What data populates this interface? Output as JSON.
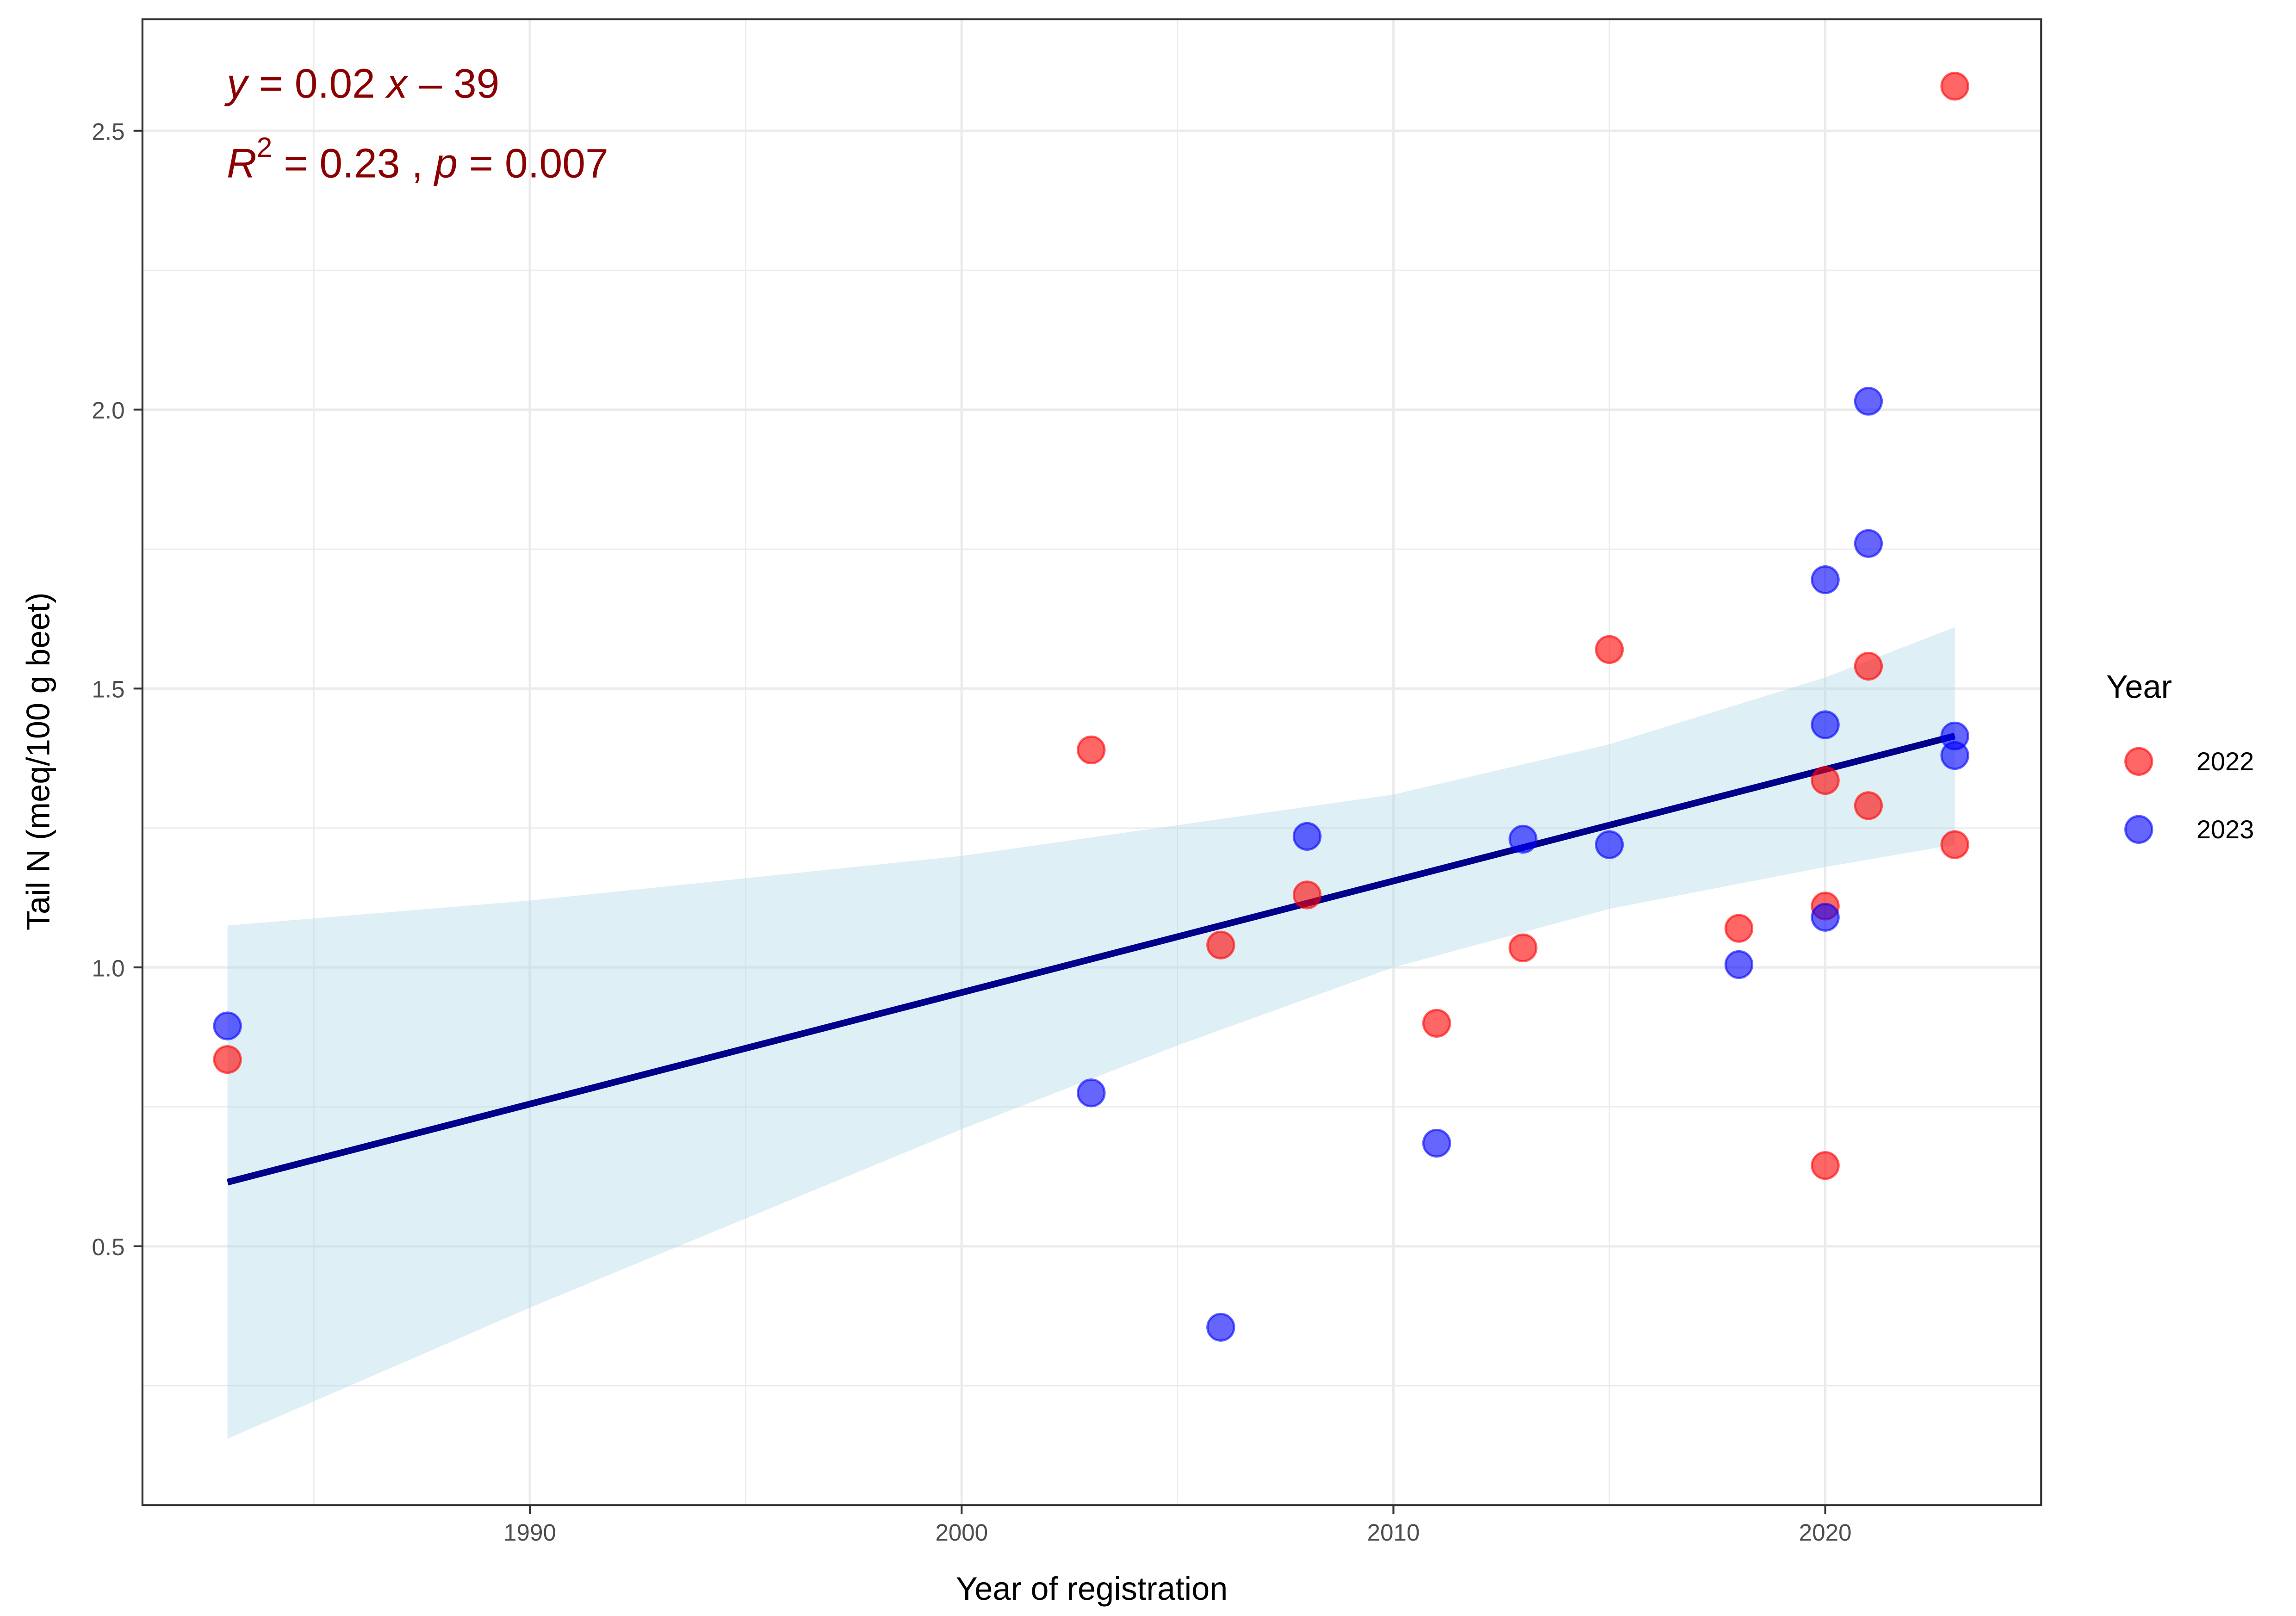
{
  "chart_data": {
    "type": "scatter",
    "title": "",
    "xlabel": "Year of registration",
    "ylabel": "Tail N (meq/100 g beet)",
    "xlim": [
      1981.03,
      2025.0
    ],
    "ylim": [
      0.036,
      2.7
    ],
    "x_ticks": [
      1990,
      2000,
      2010,
      2020
    ],
    "x_tick_labels": [
      "1990",
      "2000",
      "2010",
      "2020"
    ],
    "x_minor_ticks": [
      1985,
      1995,
      2005,
      2015
    ],
    "y_ticks": [
      0.5,
      1.0,
      1.5,
      2.0,
      2.5
    ],
    "y_tick_labels": [
      "0.5",
      "1.0",
      "1.5",
      "2.0",
      "2.5"
    ],
    "y_minor_ticks": [
      0.25,
      0.75,
      1.25,
      1.75,
      2.25
    ],
    "grid": true,
    "legend": {
      "title": "Year",
      "placement": "right",
      "entries": [
        "2022",
        "2023"
      ]
    },
    "series": [
      {
        "name": "2022",
        "color": "#ff0000",
        "points": [
          {
            "x": 1983,
            "y": 0.835
          },
          {
            "x": 2003,
            "y": 1.39
          },
          {
            "x": 2006,
            "y": 1.04
          },
          {
            "x": 2008,
            "y": 1.13
          },
          {
            "x": 2011,
            "y": 0.9
          },
          {
            "x": 2013,
            "y": 1.035
          },
          {
            "x": 2015,
            "y": 1.57
          },
          {
            "x": 2018,
            "y": 1.07
          },
          {
            "x": 2020,
            "y": 1.335
          },
          {
            "x": 2020,
            "y": 1.11
          },
          {
            "x": 2020,
            "y": 0.645
          },
          {
            "x": 2021,
            "y": 1.54
          },
          {
            "x": 2021,
            "y": 1.29
          },
          {
            "x": 2023,
            "y": 2.58
          },
          {
            "x": 2023,
            "y": 1.22
          }
        ]
      },
      {
        "name": "2023",
        "color": "#0000ff",
        "points": [
          {
            "x": 1983,
            "y": 0.895
          },
          {
            "x": 2003,
            "y": 0.775
          },
          {
            "x": 2006,
            "y": 0.355
          },
          {
            "x": 2008,
            "y": 1.235
          },
          {
            "x": 2011,
            "y": 0.685
          },
          {
            "x": 2013,
            "y": 1.23
          },
          {
            "x": 2015,
            "y": 1.22
          },
          {
            "x": 2018,
            "y": 1.005
          },
          {
            "x": 2020,
            "y": 1.695
          },
          {
            "x": 2020,
            "y": 1.435
          },
          {
            "x": 2020,
            "y": 1.09
          },
          {
            "x": 2021,
            "y": 2.015
          },
          {
            "x": 2021,
            "y": 1.76
          },
          {
            "x": 2023,
            "y": 1.415
          },
          {
            "x": 2023,
            "y": 1.38
          }
        ]
      }
    ],
    "regression": {
      "color": "#00008b",
      "x_range": [
        1983,
        2023
      ],
      "y_start": 0.615,
      "y_end": 1.415,
      "ci_color": "#add8e6",
      "ci_band": [
        {
          "x": 1983,
          "lower": 0.155,
          "upper": 1.075
        },
        {
          "x": 1990,
          "lower": 0.39,
          "upper": 1.12
        },
        {
          "x": 2000,
          "lower": 0.71,
          "upper": 1.2
        },
        {
          "x": 2005,
          "lower": 0.86,
          "upper": 1.255
        },
        {
          "x": 2010,
          "lower": 1.0,
          "upper": 1.31
        },
        {
          "x": 2015,
          "lower": 1.105,
          "upper": 1.4
        },
        {
          "x": 2020,
          "lower": 1.18,
          "upper": 1.52
        },
        {
          "x": 2023,
          "lower": 1.22,
          "upper": 1.61
        }
      ]
    },
    "annotations": {
      "equation": {
        "y_var": "y",
        "eq_rest": " = 0.02 ",
        "x_var": "x",
        "tail": " – 39"
      },
      "stats": {
        "r": "R",
        "sup": "2",
        "r_rest": " = 0.23 , ",
        "p": "p",
        "p_rest": " = 0.007"
      },
      "color": "#8b0000"
    }
  }
}
